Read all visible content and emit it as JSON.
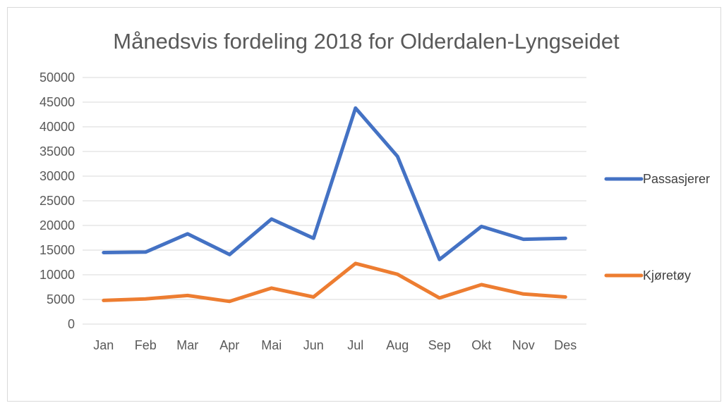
{
  "chart_data": {
    "type": "line",
    "title": "Månedsvis fordeling 2018 for Olderdalen-Lyngseidet",
    "xlabel": "",
    "ylabel": "",
    "categories": [
      "Jan",
      "Feb",
      "Mar",
      "Apr",
      "Mai",
      "Jun",
      "Jul",
      "Aug",
      "Sep",
      "Okt",
      "Nov",
      "Des"
    ],
    "ylim": [
      0,
      50000
    ],
    "yticks": [
      0,
      5000,
      10000,
      15000,
      20000,
      25000,
      30000,
      35000,
      40000,
      45000,
      50000
    ],
    "grid": true,
    "legend_position": "right",
    "series": [
      {
        "name": "Passasjerer",
        "color": "#4472c4",
        "values": [
          14500,
          14600,
          18300,
          14100,
          21300,
          17400,
          43800,
          34000,
          13100,
          19800,
          17200,
          17400
        ]
      },
      {
        "name": "Kjøretøy",
        "color": "#ed7d31",
        "values": [
          4800,
          5100,
          5800,
          4600,
          7300,
          5500,
          12300,
          10100,
          5300,
          8000,
          6100,
          5500
        ]
      }
    ]
  }
}
